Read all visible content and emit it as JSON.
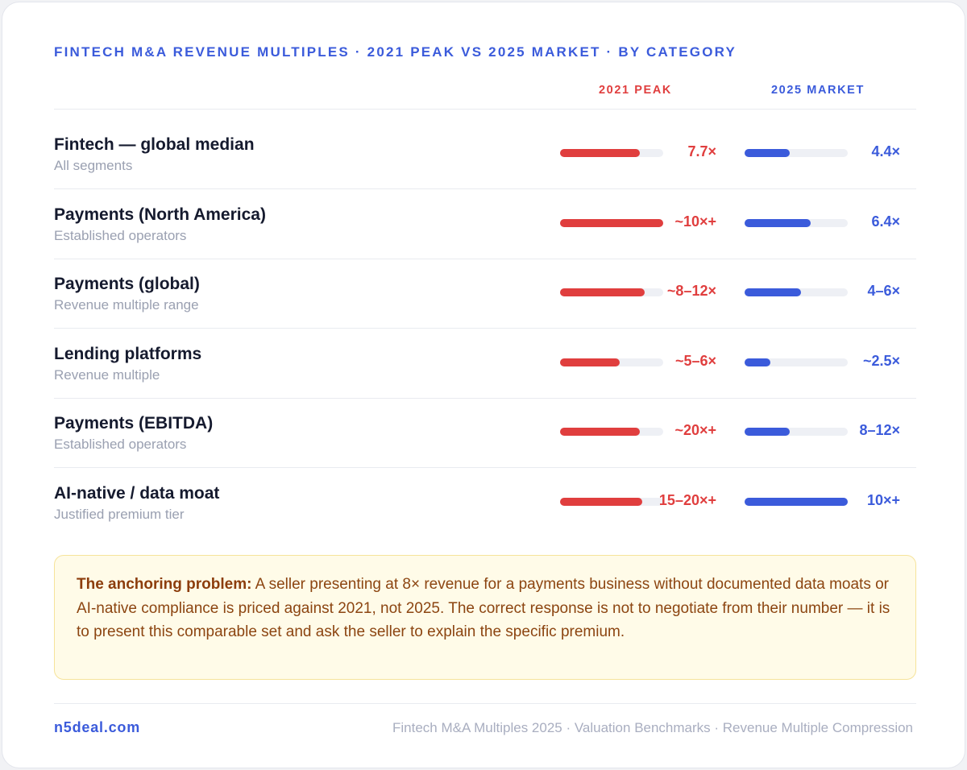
{
  "header": {
    "title": "FINTECH M&A REVENUE MULTIPLES · 2021 PEAK VS 2025 MARKET · BY CATEGORY"
  },
  "colors": {
    "peak": "#e03e3e",
    "market": "#3b5bdb",
    "track": "#eef0f5"
  },
  "chart_data": {
    "type": "bar",
    "columns": [
      "2021 PEAK",
      "2025 MARKET"
    ],
    "categories": [
      "Fintech — global median",
      "Payments (North America)",
      "Payments (global)",
      "Lending platforms",
      "Payments (EBITDA)",
      "AI-native / data moat"
    ],
    "subtitles": [
      "All segments",
      "Established operators",
      "Revenue multiple range",
      "Revenue multiple",
      "Established operators",
      "Justified premium tier"
    ],
    "series": [
      {
        "name": "2021 PEAK",
        "labels": [
          "7.7×",
          "~10×+",
          "~8–12×",
          "~5–6×",
          "~20×+",
          "15–20×+"
        ],
        "values": [
          0.77,
          1.0,
          0.82,
          0.58,
          0.77,
          0.8
        ]
      },
      {
        "name": "2025 MARKET",
        "labels": [
          "4.4×",
          "6.4×",
          "4–6×",
          "~2.5×",
          "8–12×",
          "10×+"
        ],
        "values": [
          0.44,
          0.64,
          0.55,
          0.25,
          0.44,
          1.0
        ]
      }
    ]
  },
  "callout": {
    "lead": "The anchoring problem:",
    "body": " A seller presenting at 8× revenue for a payments business without documented data moats or AI-native compliance is priced against 2021, not 2025. The correct response is not to negotiate from their number — it is to present this comparable set and ask the seller to explain the specific premium."
  },
  "footer": {
    "site": "n5deal.com",
    "tags": "Fintech M&A Multiples 2025 · Valuation Benchmarks · Revenue Multiple Compression"
  }
}
